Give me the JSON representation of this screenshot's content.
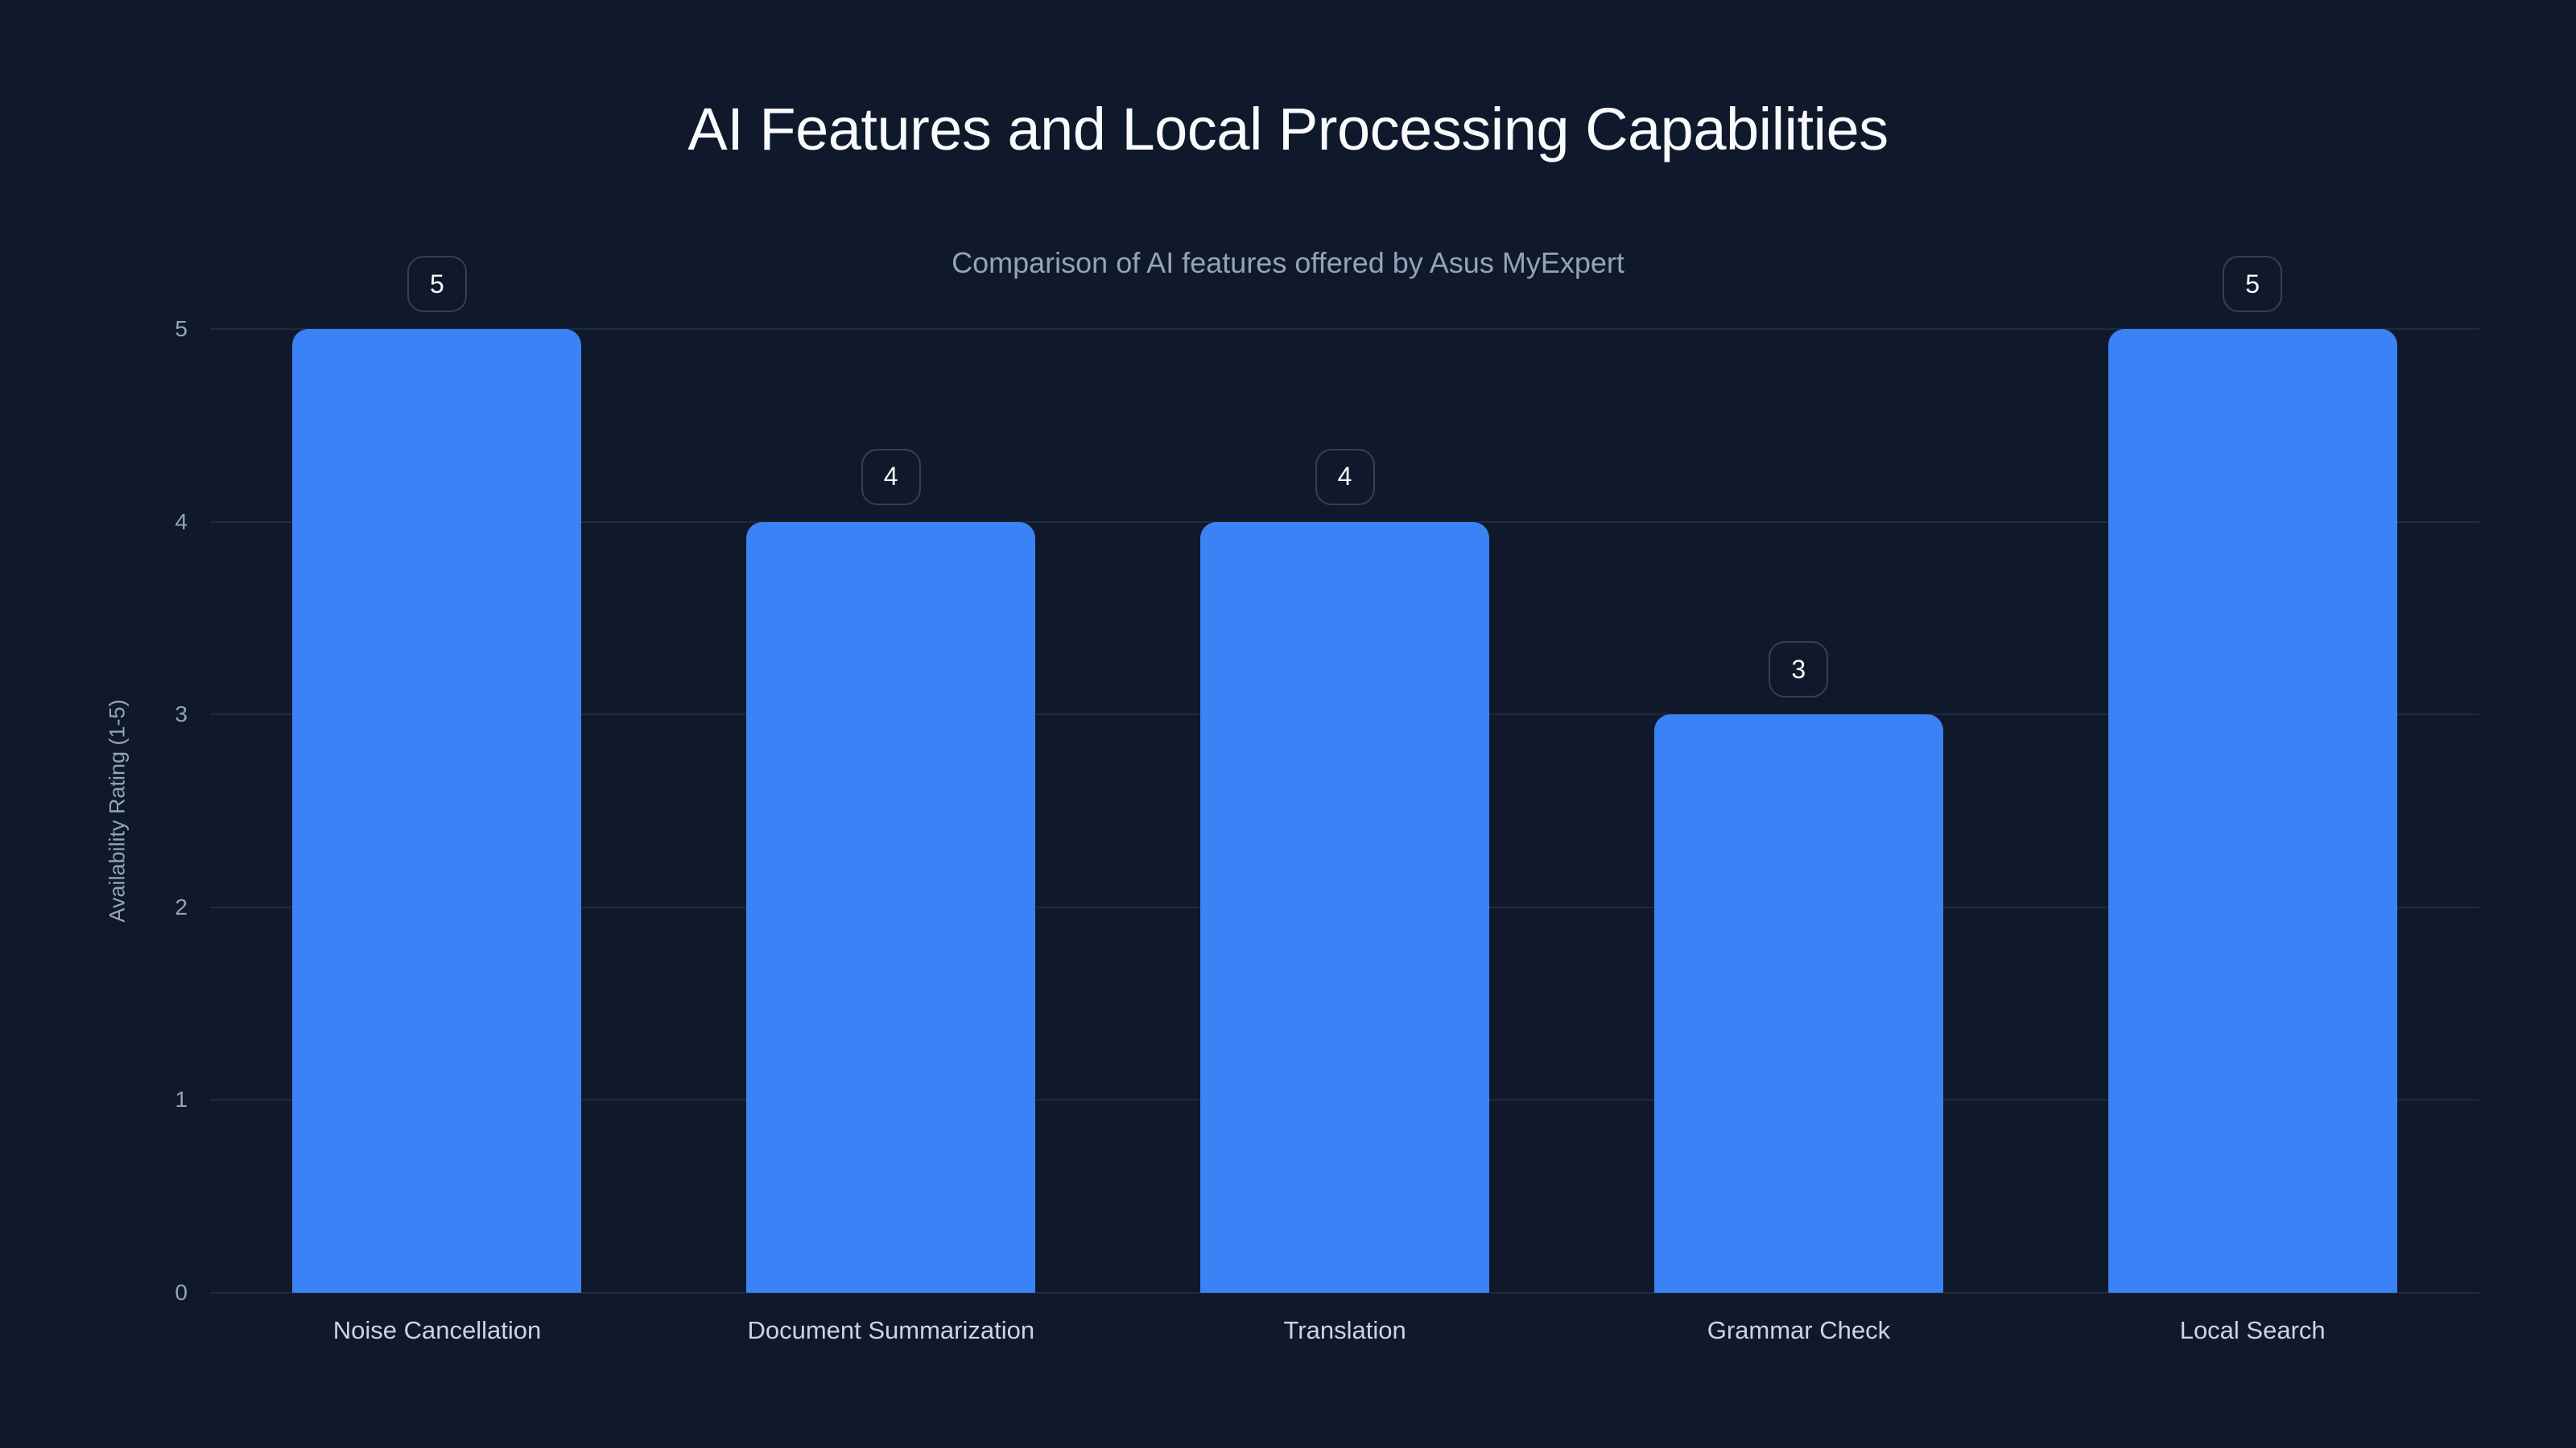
{
  "header": {
    "title": "AI Features and Local Processing Capabilities",
    "subtitle": "Comparison of AI features offered by Asus MyExpert"
  },
  "axes": {
    "ylabel": "Availability Rating (1-5)",
    "yticks": [
      "0",
      "1",
      "2",
      "3",
      "4",
      "5"
    ]
  },
  "bars": [
    {
      "label": "Noise Cancellation",
      "value": "5"
    },
    {
      "label": "Document Summarization",
      "value": "4"
    },
    {
      "label": "Translation",
      "value": "4"
    },
    {
      "label": "Grammar Check",
      "value": "3"
    },
    {
      "label": "Local Search",
      "value": "5"
    }
  ],
  "colors": {
    "background": "#10192b",
    "bar": "#3b82f6",
    "grid": "#1f2a3d",
    "title": "#f8fafc",
    "muted_text": "#94a3b8"
  },
  "chart_data": {
    "type": "bar",
    "title": "AI Features and Local Processing Capabilities",
    "subtitle": "Comparison of AI features offered by Asus MyExpert",
    "categories": [
      "Noise Cancellation",
      "Document Summarization",
      "Translation",
      "Grammar Check",
      "Local Search"
    ],
    "values": [
      5,
      4,
      4,
      3,
      5
    ],
    "xlabel": "",
    "ylabel": "Availability Rating (1-5)",
    "ylim": [
      0,
      5
    ],
    "yticks": [
      0,
      1,
      2,
      3,
      4,
      5
    ],
    "grid": true,
    "legend": null,
    "data_labels": true
  }
}
